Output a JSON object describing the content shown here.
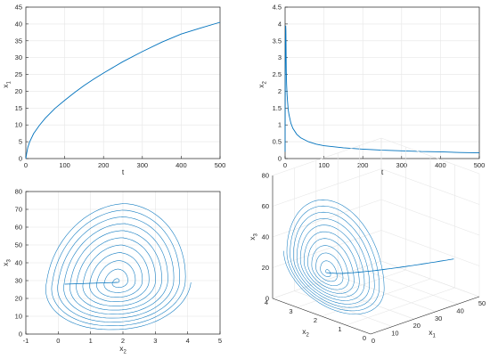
{
  "accent": "#0072bd",
  "chart_data": [
    {
      "type": "line",
      "id": "x1",
      "xlabel": "t",
      "ylabel": "x",
      "ylabel_sub": "1",
      "xlim": [
        0,
        500
      ],
      "ylim": [
        0,
        45
      ],
      "grid": true,
      "xticks": [
        0,
        100,
        200,
        300,
        400,
        500
      ],
      "yticks": [
        0,
        5,
        10,
        15,
        20,
        25,
        30,
        35,
        40,
        45
      ],
      "series": [
        {
          "x": [
            0,
            2,
            5,
            10,
            20,
            35,
            50,
            75,
            100,
            125,
            150,
            175,
            200,
            250,
            300,
            350,
            400,
            450,
            500
          ],
          "y": [
            0,
            1.5,
            3.3,
            5.0,
            7.4,
            9.9,
            12.0,
            14.9,
            17.3,
            19.6,
            21.7,
            23.6,
            25.4,
            28.8,
            31.8,
            34.6,
            37.0,
            38.8,
            40.5
          ]
        }
      ]
    },
    {
      "type": "line",
      "id": "x2",
      "xlabel": "t",
      "ylabel": "x",
      "ylabel_sub": "2",
      "xlim": [
        0,
        500
      ],
      "ylim": [
        0,
        4.5
      ],
      "grid": true,
      "xticks": [
        0,
        100,
        200,
        300,
        400,
        500
      ],
      "yticks": [
        0,
        0.5,
        1,
        1.5,
        2,
        2.5,
        3,
        3.5,
        4,
        4.5
      ],
      "series": [
        {
          "x": [
            0,
            0.5,
            1,
            1.5,
            2,
            3,
            4,
            5,
            6,
            8,
            10,
            15,
            20,
            30,
            40,
            60,
            80,
            100,
            150,
            200,
            250,
            300,
            350,
            400,
            450,
            500
          ],
          "y": [
            0.2,
            2.5,
            3.6,
            3.95,
            3.8,
            2.6,
            2.2,
            1.9,
            1.75,
            1.45,
            1.3,
            1.05,
            0.9,
            0.72,
            0.62,
            0.5,
            0.43,
            0.38,
            0.32,
            0.28,
            0.25,
            0.23,
            0.21,
            0.2,
            0.18,
            0.17
          ]
        }
      ]
    },
    {
      "type": "line",
      "id": "phase",
      "xlabel": "x",
      "xlabel_sub": "2",
      "ylabel": "x",
      "ylabel_sub": "3",
      "xlim": [
        -1,
        5
      ],
      "ylim": [
        0,
        80
      ],
      "grid": true,
      "xticks": [
        -1,
        0,
        1,
        2,
        3,
        4,
        5
      ],
      "yticks": [
        0,
        10,
        20,
        30,
        40,
        50,
        60,
        70,
        80
      ],
      "spiral": {
        "center": [
          1.85,
          29
        ],
        "turns": 11,
        "outer_x_range": [
          -0.45,
          4.1
        ],
        "outer_y_range": [
          2,
          76
        ]
      },
      "start_point": [
        0.2,
        28
      ]
    },
    {
      "type": "line",
      "id": "phase3d",
      "xlabel": "x",
      "xlabel_sub": "1",
      "ylabel": "x",
      "ylabel_sub": "2",
      "zlabel": "x",
      "zlabel_sub": "3",
      "x_ticks": [
        0,
        10,
        20,
        30,
        40,
        50
      ],
      "y_ticks": [
        0,
        1,
        2,
        3,
        4
      ],
      "z_ticks": [
        0,
        20,
        40,
        60,
        80
      ],
      "xlim": [
        0,
        50
      ],
      "ylim": [
        0,
        4
      ],
      "zlim": [
        0,
        80
      ],
      "grid": true
    }
  ]
}
